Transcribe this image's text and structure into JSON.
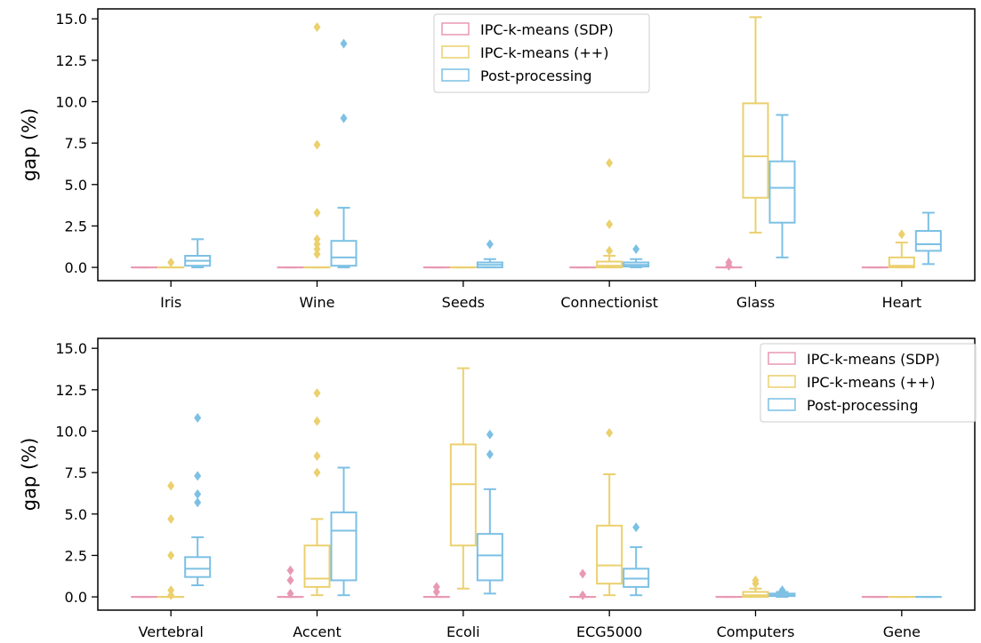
{
  "chart_data": [
    {
      "type": "box",
      "ylabel": "gap (%)",
      "ylim": [
        -0.8,
        15.6
      ],
      "yticks": [
        "0.0",
        "2.5",
        "5.0",
        "7.5",
        "10.0",
        "12.5",
        "15.0"
      ],
      "ytick_values": [
        0,
        2.5,
        5,
        7.5,
        10,
        12.5,
        15
      ],
      "legend_position": "top-center",
      "categories": [
        "Iris",
        "Wine",
        "Seeds",
        "Connectionist",
        "Glass",
        "Heart"
      ],
      "series": [
        {
          "name": "IPC-k-means (SDP)",
          "color": "#e899b2",
          "boxes": [
            {
              "min": 0,
              "q1": 0,
              "median": 0,
              "q3": 0,
              "max": 0,
              "outliers": []
            },
            {
              "min": 0,
              "q1": 0,
              "median": 0,
              "q3": 0,
              "max": 0,
              "outliers": []
            },
            {
              "min": 0,
              "q1": 0,
              "median": 0,
              "q3": 0,
              "max": 0,
              "outliers": []
            },
            {
              "min": 0,
              "q1": 0,
              "median": 0,
              "q3": 0,
              "max": 0,
              "outliers": []
            },
            {
              "min": 0,
              "q1": 0,
              "median": 0,
              "q3": 0,
              "max": 0,
              "outliers": [
                0.1,
                0.3
              ]
            },
            {
              "min": 0,
              "q1": 0,
              "median": 0,
              "q3": 0,
              "max": 0,
              "outliers": []
            }
          ]
        },
        {
          "name": "IPC-k-means (++)",
          "color": "#ebd06e",
          "boxes": [
            {
              "min": 0,
              "q1": 0,
              "median": 0,
              "q3": 0,
              "max": 0,
              "outliers": [
                0.3
              ]
            },
            {
              "min": 0,
              "q1": 0,
              "median": 0,
              "q3": 0,
              "max": 0,
              "outliers": [
                0.8,
                1.1,
                1.4,
                1.7,
                3.3,
                7.4,
                14.5
              ]
            },
            {
              "min": 0,
              "q1": 0,
              "median": 0,
              "q3": 0,
              "max": 0,
              "outliers": []
            },
            {
              "min": 0,
              "q1": 0,
              "median": 0.1,
              "q3": 0.35,
              "max": 0.7,
              "outliers": [
                1.0,
                2.6,
                6.3
              ]
            },
            {
              "min": 2.1,
              "q1": 4.2,
              "median": 6.7,
              "q3": 9.9,
              "max": 15.1,
              "outliers": []
            },
            {
              "min": 0,
              "q1": 0,
              "median": 0.1,
              "q3": 0.6,
              "max": 1.5,
              "outliers": [
                2.0
              ]
            }
          ]
        },
        {
          "name": "Post-processing",
          "color": "#7cc0e4",
          "boxes": [
            {
              "min": 0,
              "q1": 0.1,
              "median": 0.4,
              "q3": 0.7,
              "max": 1.7,
              "outliers": []
            },
            {
              "min": 0,
              "q1": 0.1,
              "median": 0.6,
              "q3": 1.6,
              "max": 3.6,
              "outliers": [
                9.0,
                13.5
              ]
            },
            {
              "min": 0,
              "q1": 0,
              "median": 0.15,
              "q3": 0.3,
              "max": 0.5,
              "outliers": [
                1.4
              ]
            },
            {
              "min": 0,
              "q1": 0.05,
              "median": 0.15,
              "q3": 0.3,
              "max": 0.5,
              "outliers": [
                1.1
              ]
            },
            {
              "min": 0.6,
              "q1": 2.7,
              "median": 4.8,
              "q3": 6.4,
              "max": 9.2,
              "outliers": []
            },
            {
              "min": 0.2,
              "q1": 1.0,
              "median": 1.4,
              "q3": 2.2,
              "max": 3.3,
              "outliers": []
            }
          ]
        }
      ]
    },
    {
      "type": "box",
      "ylabel": "gap (%)",
      "ylim": [
        -0.8,
        15.6
      ],
      "yticks": [
        "0.0",
        "2.5",
        "5.0",
        "7.5",
        "10.0",
        "12.5",
        "15.0"
      ],
      "ytick_values": [
        0,
        2.5,
        5,
        7.5,
        10,
        12.5,
        15
      ],
      "legend_position": "top-right",
      "categories": [
        "Vertebral",
        "Accent",
        "Ecoli",
        "ECG5000",
        "Computers",
        "Gene"
      ],
      "series": [
        {
          "name": "IPC-k-means (SDP)",
          "color": "#e899b2",
          "boxes": [
            {
              "min": 0,
              "q1": 0,
              "median": 0,
              "q3": 0,
              "max": 0,
              "outliers": []
            },
            {
              "min": 0,
              "q1": 0,
              "median": 0,
              "q3": 0,
              "max": 0,
              "outliers": [
                0.2,
                1.0,
                1.6
              ]
            },
            {
              "min": 0,
              "q1": 0,
              "median": 0,
              "q3": 0,
              "max": 0,
              "outliers": [
                0.3,
                0.6
              ]
            },
            {
              "min": 0,
              "q1": 0,
              "median": 0,
              "q3": 0,
              "max": 0,
              "outliers": [
                0.1,
                1.4
              ]
            },
            {
              "min": 0,
              "q1": 0,
              "median": 0,
              "q3": 0,
              "max": 0,
              "outliers": []
            },
            {
              "min": 0,
              "q1": 0,
              "median": 0,
              "q3": 0,
              "max": 0,
              "outliers": []
            }
          ]
        },
        {
          "name": "IPC-k-means (++)",
          "color": "#ebd06e",
          "boxes": [
            {
              "min": 0,
              "q1": 0,
              "median": 0,
              "q3": 0,
              "max": 0,
              "outliers": [
                0.1,
                0.4,
                2.5,
                4.7,
                6.7
              ]
            },
            {
              "min": 0.1,
              "q1": 0.6,
              "median": 1.1,
              "q3": 3.1,
              "max": 4.7,
              "outliers": [
                7.5,
                8.5,
                10.6,
                12.3
              ]
            },
            {
              "min": 0.5,
              "q1": 3.1,
              "median": 6.8,
              "q3": 9.2,
              "max": 13.8,
              "outliers": []
            },
            {
              "min": 0.1,
              "q1": 0.8,
              "median": 1.9,
              "q3": 4.3,
              "max": 7.4,
              "outliers": [
                9.9
              ]
            },
            {
              "min": 0,
              "q1": 0,
              "median": 0.1,
              "q3": 0.3,
              "max": 0.5,
              "outliers": [
                0.8,
                1.0
              ]
            },
            {
              "min": 0,
              "q1": 0,
              "median": 0,
              "q3": 0,
              "max": 0,
              "outliers": []
            }
          ]
        },
        {
          "name": "Post-processing",
          "color": "#7cc0e4",
          "boxes": [
            {
              "min": 0.7,
              "q1": 1.2,
              "median": 1.7,
              "q3": 2.4,
              "max": 3.6,
              "outliers": [
                5.7,
                6.2,
                7.3,
                10.8
              ]
            },
            {
              "min": 0.1,
              "q1": 1.0,
              "median": 4.0,
              "q3": 5.1,
              "max": 7.8,
              "outliers": []
            },
            {
              "min": 0.2,
              "q1": 1.0,
              "median": 2.5,
              "q3": 3.8,
              "max": 6.5,
              "outliers": [
                8.6,
                9.8
              ]
            },
            {
              "min": 0.1,
              "q1": 0.6,
              "median": 1.1,
              "q3": 1.7,
              "max": 3.0,
              "outliers": [
                4.2
              ]
            },
            {
              "min": 0,
              "q1": 0.05,
              "median": 0.1,
              "q3": 0.2,
              "max": 0.3,
              "outliers": [
                0.4
              ]
            },
            {
              "min": 0,
              "q1": 0,
              "median": 0,
              "q3": 0,
              "max": 0,
              "outliers": []
            }
          ]
        }
      ]
    }
  ]
}
